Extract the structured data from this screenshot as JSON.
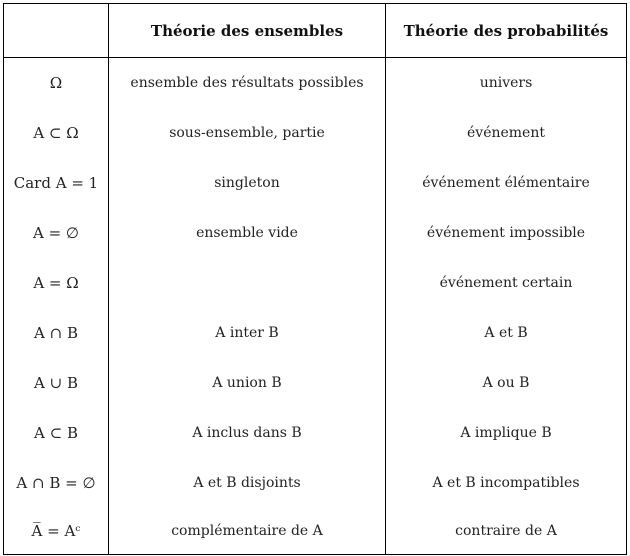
{
  "header": {
    "col0": "",
    "col1": "Théorie des ensembles",
    "col2": "Théorie des probabilités"
  },
  "rows": [
    {
      "notation": "Ω",
      "ensembles": "ensemble des résultats possibles",
      "probabilites": "univers"
    },
    {
      "notation": "A ⊂ Ω",
      "ensembles": "sous-ensemble, partie",
      "probabilites": "événement"
    },
    {
      "notation": "Card A = 1",
      "ensembles": "singleton",
      "probabilites": "événement élémentaire"
    },
    {
      "notation": "A = ∅",
      "ensembles": "ensemble vide",
      "probabilites": "événement impossible"
    },
    {
      "notation": "A = Ω",
      "ensembles": "",
      "probabilites": "événement certain"
    },
    {
      "notation": "A ∩ B",
      "ensembles": "A inter B",
      "probabilites": "A et B"
    },
    {
      "notation": "A ∪ B",
      "ensembles": "A union B",
      "probabilites": "A ou B"
    },
    {
      "notation": "A ⊂ B",
      "ensembles": "A inclus dans B",
      "probabilites": "A implique B"
    },
    {
      "notation": "A ∩ B = ∅",
      "ensembles": "A et B disjoints",
      "probabilites": "A et B incompatibles"
    },
    {
      "notation": "A̅ = Aᶜ",
      "ensembles": "complémentaire de A",
      "probabilites": "contraire de A"
    }
  ]
}
